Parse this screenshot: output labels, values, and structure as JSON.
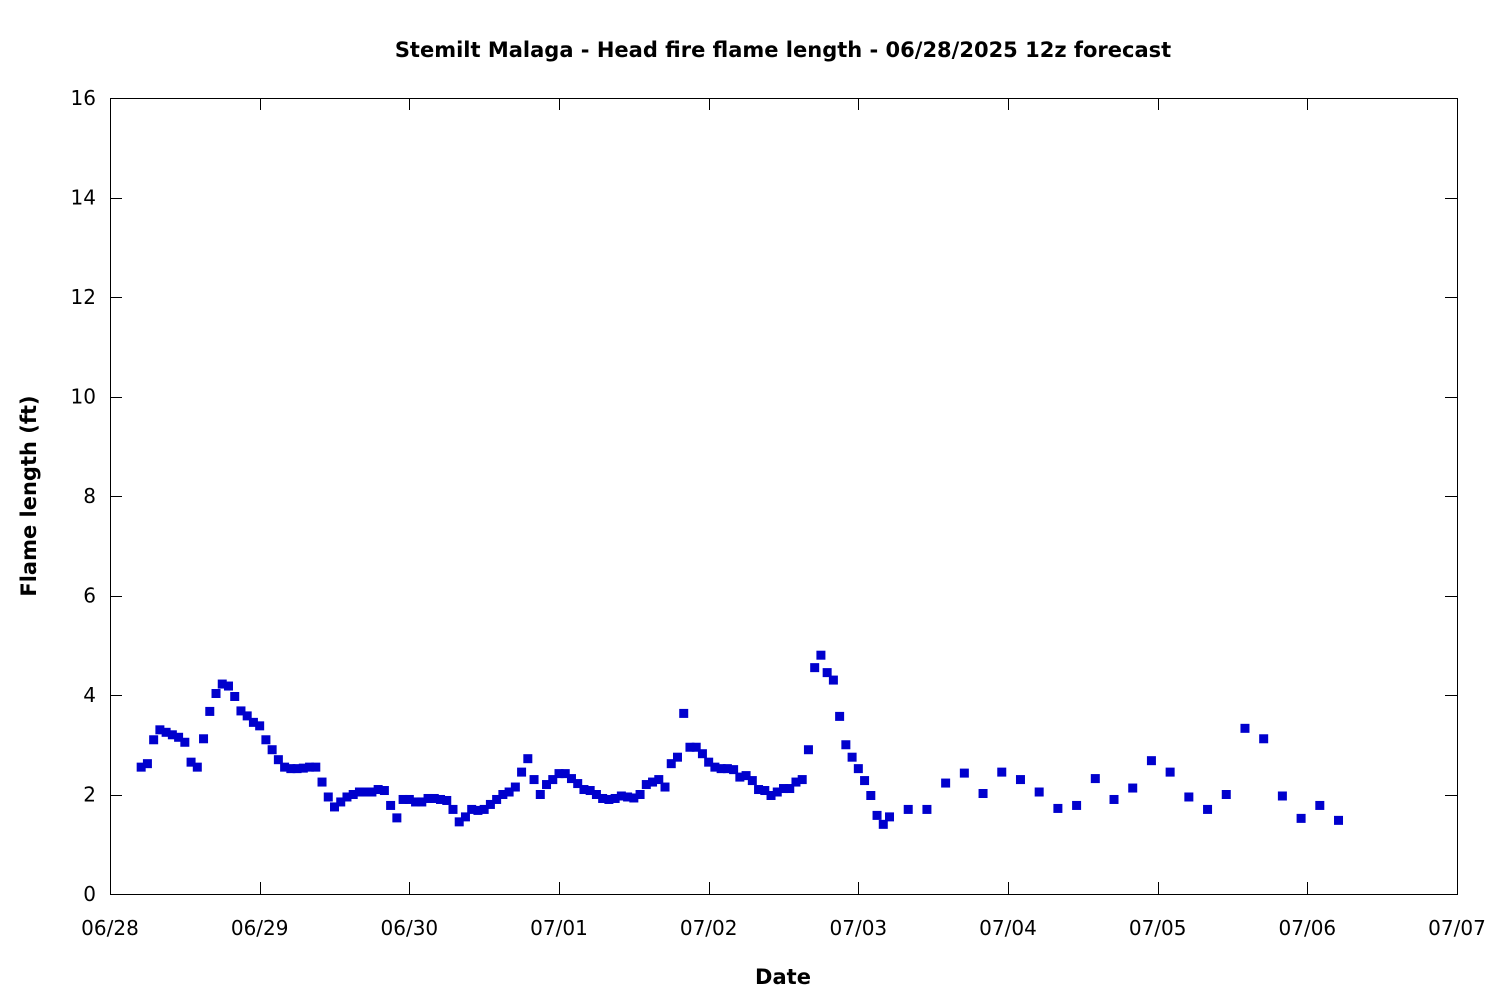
{
  "chart_data": {
    "type": "scatter",
    "title": "Stemilt Malaga - Head fire flame length - 06/28/2025 12z forecast",
    "xlabel": "Date",
    "ylabel": "Flame length (ft)",
    "xlim": [
      "06/28",
      "07/07"
    ],
    "ylim": [
      0,
      16
    ],
    "x_ticks": [
      "06/28",
      "06/29",
      "06/30",
      "07/01",
      "07/02",
      "07/03",
      "07/04",
      "07/05",
      "07/06",
      "07/07"
    ],
    "y_ticks": [
      0,
      2,
      4,
      6,
      8,
      10,
      12,
      14,
      16
    ],
    "grid": false,
    "legend": "none",
    "marker_color": "#0000cd",
    "marker": "square",
    "series": [
      {
        "x": [
          "06/28 05:00",
          "06/28 06:00",
          "06/28 07:00",
          "06/28 08:00",
          "06/28 09:00",
          "06/28 10:00",
          "06/28 11:00",
          "06/28 12:00",
          "06/28 13:00",
          "06/28 14:00",
          "06/28 15:00",
          "06/28 16:00",
          "06/28 17:00",
          "06/28 18:00",
          "06/28 19:00",
          "06/28 20:00",
          "06/28 21:00",
          "06/28 22:00",
          "06/28 23:00",
          "06/29 00:00",
          "06/29 01:00",
          "06/29 02:00",
          "06/29 03:00",
          "06/29 04:00",
          "06/29 05:00",
          "06/29 06:00",
          "06/29 07:00",
          "06/29 08:00",
          "06/29 09:00",
          "06/29 10:00",
          "06/29 11:00",
          "06/29 12:00",
          "06/29 13:00",
          "06/29 14:00",
          "06/29 15:00",
          "06/29 16:00",
          "06/29 17:00",
          "06/29 18:00",
          "06/29 19:00",
          "06/29 20:00",
          "06/29 21:00",
          "06/29 22:00",
          "06/29 23:00",
          "06/30 00:00",
          "06/30 01:00",
          "06/30 02:00",
          "06/30 03:00",
          "06/30 04:00",
          "06/30 05:00",
          "06/30 06:00",
          "06/30 07:00",
          "06/30 08:00",
          "06/30 09:00",
          "06/30 10:00",
          "06/30 11:00",
          "06/30 12:00",
          "06/30 13:00",
          "06/30 14:00",
          "06/30 15:00",
          "06/30 16:00",
          "06/30 17:00",
          "06/30 18:00",
          "06/30 19:00",
          "06/30 20:00",
          "06/30 21:00",
          "06/30 22:00",
          "06/30 23:00",
          "07/01 00:00",
          "07/01 01:00",
          "07/01 02:00",
          "07/01 03:00",
          "07/01 04:00",
          "07/01 05:00",
          "07/01 06:00",
          "07/01 07:00",
          "07/01 08:00",
          "07/01 09:00",
          "07/01 10:00",
          "07/01 11:00",
          "07/01 12:00",
          "07/01 13:00",
          "07/01 14:00",
          "07/01 15:00",
          "07/01 16:00",
          "07/01 17:00",
          "07/01 18:00",
          "07/01 19:00",
          "07/01 20:00",
          "07/01 21:00",
          "07/01 22:00",
          "07/01 23:00",
          "07/02 00:00",
          "07/02 01:00",
          "07/02 02:00",
          "07/02 03:00",
          "07/02 04:00",
          "07/02 05:00",
          "07/02 06:00",
          "07/02 07:00",
          "07/02 08:00",
          "07/02 09:00",
          "07/02 10:00",
          "07/02 11:00",
          "07/02 12:00",
          "07/02 13:00",
          "07/02 14:00",
          "07/02 15:00",
          "07/02 16:00",
          "07/02 17:00",
          "07/02 18:00",
          "07/02 19:00",
          "07/02 20:00",
          "07/02 21:00",
          "07/02 22:00",
          "07/02 23:00",
          "07/03 00:00",
          "07/03 01:00",
          "07/03 02:00",
          "07/03 03:00",
          "07/03 04:00",
          "07/03 05:00",
          "07/03 08:00",
          "07/03 11:00",
          "07/03 14:00",
          "07/03 17:00",
          "07/03 20:00",
          "07/03 23:00",
          "07/04 02:00",
          "07/04 05:00",
          "07/04 08:00",
          "07/04 11:00",
          "07/04 14:00",
          "07/04 17:00",
          "07/04 20:00",
          "07/04 23:00",
          "07/05 02:00",
          "07/05 05:00",
          "07/05 08:00",
          "07/05 11:00",
          "07/05 14:00",
          "07/05 17:00",
          "07/05 20:00",
          "07/05 23:00",
          "07/06 02:00",
          "07/06 05:00"
        ],
        "y": [
          2.55,
          2.62,
          3.1,
          3.3,
          3.25,
          3.2,
          3.15,
          3.05,
          2.65,
          2.55,
          3.12,
          3.67,
          4.03,
          4.22,
          4.18,
          3.97,
          3.68,
          3.58,
          3.45,
          3.38,
          3.1,
          2.9,
          2.7,
          2.55,
          2.52,
          2.52,
          2.53,
          2.55,
          2.55,
          2.25,
          1.95,
          1.75,
          1.85,
          1.95,
          2.0,
          2.05,
          2.05,
          2.05,
          2.1,
          2.08,
          1.78,
          1.53,
          1.9,
          1.9,
          1.85,
          1.85,
          1.92,
          1.92,
          1.9,
          1.88,
          1.7,
          1.45,
          1.55,
          1.7,
          1.68,
          1.7,
          1.8,
          1.9,
          2.0,
          2.05,
          2.15,
          2.45,
          2.72,
          2.3,
          2.0,
          2.2,
          2.3,
          2.42,
          2.42,
          2.32,
          2.22,
          2.1,
          2.08,
          2.0,
          1.92,
          1.9,
          1.92,
          1.97,
          1.95,
          1.93,
          2.0,
          2.2,
          2.25,
          2.3,
          2.15,
          2.62,
          2.75,
          3.63,
          2.95,
          2.95,
          2.82,
          2.65,
          2.55,
          2.52,
          2.52,
          2.5,
          2.35,
          2.38,
          2.28,
          2.1,
          2.08,
          1.98,
          2.05,
          2.12,
          2.12,
          2.25,
          2.3,
          2.9,
          4.55,
          4.8,
          4.45,
          4.3,
          3.57,
          3.0,
          2.75,
          2.52,
          2.28,
          1.98,
          1.58,
          1.4,
          1.55,
          1.7,
          1.7,
          2.23,
          2.43,
          2.02,
          2.45,
          2.3,
          2.05,
          1.72,
          1.78,
          2.32,
          1.9,
          2.13,
          2.68,
          2.45,
          1.95,
          1.7,
          2.0,
          3.33,
          3.12,
          1.97,
          1.52,
          1.78,
          1.48
        ]
      }
    ]
  }
}
